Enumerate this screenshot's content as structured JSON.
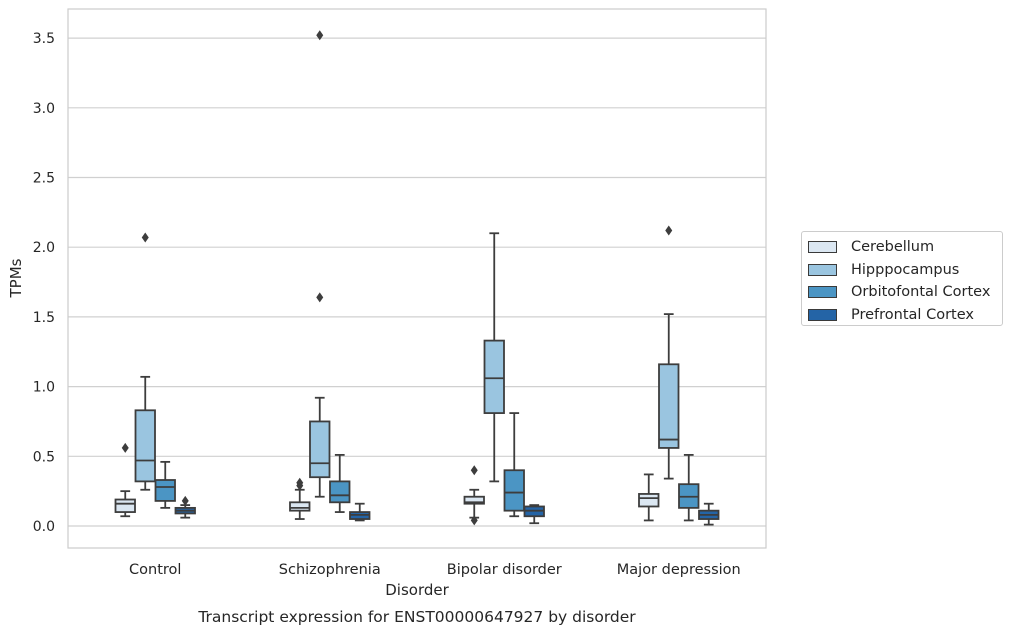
{
  "chart_data": {
    "type": "box",
    "title": "",
    "caption": "Transcript expression for ENST00000647927 by disorder",
    "xlabel": "Disorder",
    "ylabel": "TPMs",
    "ylim": [
      -0.16,
      3.7
    ],
    "yticks": [
      "0.0",
      "0.5",
      "1.0",
      "1.5",
      "2.0",
      "2.5",
      "3.0",
      "3.5"
    ],
    "categories": [
      "Control",
      "Schizophrenia",
      "Bipolar disorder",
      "Major depression"
    ],
    "grid": true,
    "legend_position": "right",
    "series": [
      {
        "name": "Cerebellum",
        "color": "#dbe7f2",
        "boxes": [
          {
            "whisker_low": 0.07,
            "q1": 0.1,
            "median": 0.16,
            "q3": 0.19,
            "whisker_high": 0.25,
            "outliers": [
              0.56
            ]
          },
          {
            "whisker_low": 0.05,
            "q1": 0.11,
            "median": 0.13,
            "q3": 0.17,
            "whisker_high": 0.26,
            "outliers": [
              0.29,
              0.31
            ]
          },
          {
            "whisker_low": 0.06,
            "q1": 0.16,
            "median": 0.17,
            "q3": 0.21,
            "whisker_high": 0.26,
            "outliers": [
              0.04,
              0.4
            ]
          },
          {
            "whisker_low": 0.04,
            "q1": 0.14,
            "median": 0.2,
            "q3": 0.23,
            "whisker_high": 0.37,
            "outliers": []
          }
        ]
      },
      {
        "name": "Hipppocampus",
        "color": "#9ac5e0",
        "boxes": [
          {
            "whisker_low": 0.26,
            "q1": 0.32,
            "median": 0.47,
            "q3": 0.83,
            "whisker_high": 1.07,
            "outliers": [
              2.07
            ]
          },
          {
            "whisker_low": 0.21,
            "q1": 0.35,
            "median": 0.45,
            "q3": 0.75,
            "whisker_high": 0.92,
            "outliers": [
              1.64,
              3.52
            ]
          },
          {
            "whisker_low": 0.32,
            "q1": 0.81,
            "median": 1.06,
            "q3": 1.33,
            "whisker_high": 2.1,
            "outliers": []
          },
          {
            "whisker_low": 0.34,
            "q1": 0.56,
            "median": 0.62,
            "q3": 1.16,
            "whisker_high": 1.52,
            "outliers": [
              2.12
            ]
          }
        ]
      },
      {
        "name": "Orbitofontal Cortex",
        "color": "#4b95c4",
        "boxes": [
          {
            "whisker_low": 0.13,
            "q1": 0.18,
            "median": 0.28,
            "q3": 0.33,
            "whisker_high": 0.46,
            "outliers": []
          },
          {
            "whisker_low": 0.1,
            "q1": 0.17,
            "median": 0.22,
            "q3": 0.32,
            "whisker_high": 0.51,
            "outliers": []
          },
          {
            "whisker_low": 0.07,
            "q1": 0.11,
            "median": 0.24,
            "q3": 0.4,
            "whisker_high": 0.81,
            "outliers": []
          },
          {
            "whisker_low": 0.04,
            "q1": 0.13,
            "median": 0.21,
            "q3": 0.3,
            "whisker_high": 0.51,
            "outliers": []
          }
        ]
      },
      {
        "name": "Prefrontal Cortex",
        "color": "#2464a6",
        "boxes": [
          {
            "whisker_low": 0.06,
            "q1": 0.09,
            "median": 0.11,
            "q3": 0.13,
            "whisker_high": 0.15,
            "outliers": [
              0.18
            ]
          },
          {
            "whisker_low": 0.04,
            "q1": 0.05,
            "median": 0.08,
            "q3": 0.1,
            "whisker_high": 0.16,
            "outliers": []
          },
          {
            "whisker_low": 0.02,
            "q1": 0.07,
            "median": 0.11,
            "q3": 0.14,
            "whisker_high": 0.15,
            "outliers": []
          },
          {
            "whisker_low": 0.01,
            "q1": 0.05,
            "median": 0.08,
            "q3": 0.11,
            "whisker_high": 0.16,
            "outliers": []
          }
        ]
      }
    ]
  }
}
